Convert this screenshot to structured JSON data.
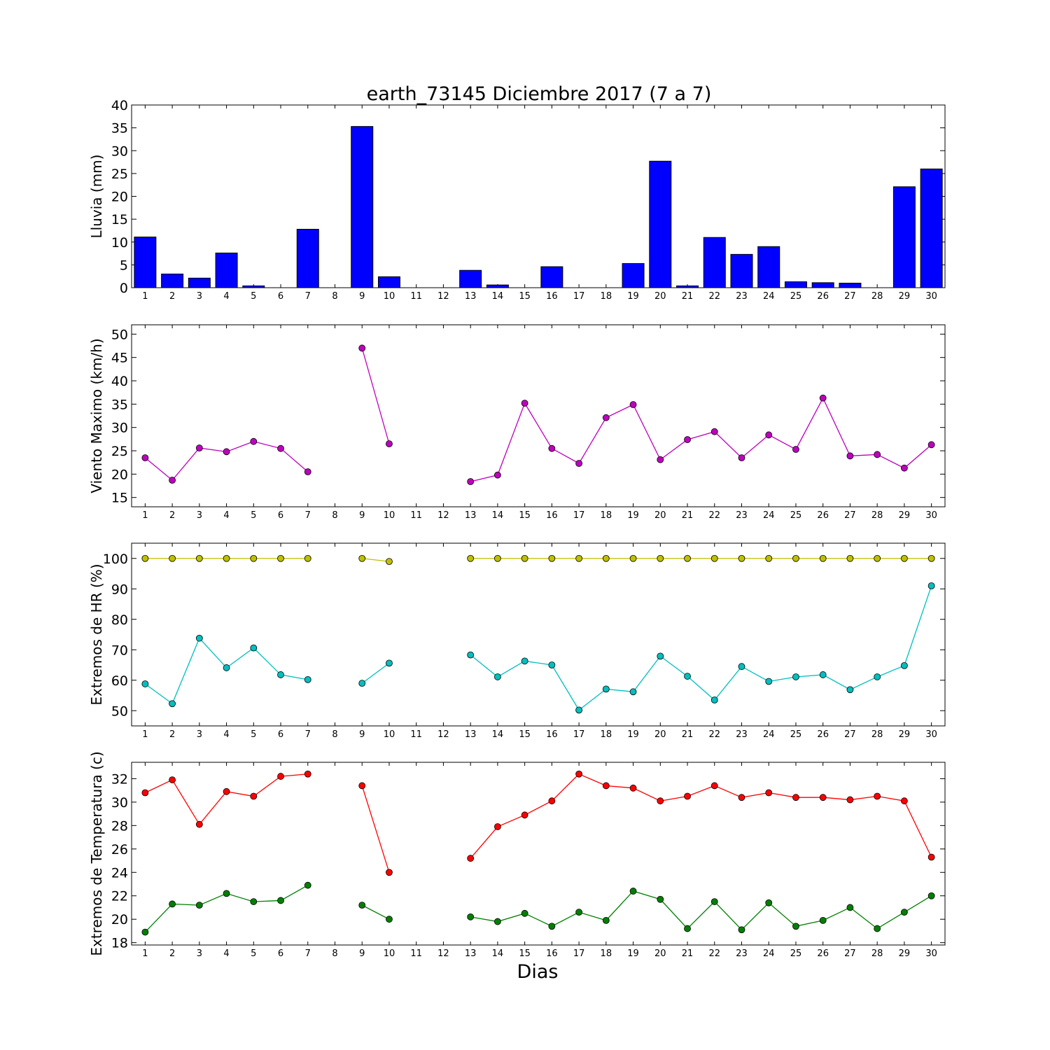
{
  "title": "earth_73145 Diciembre 2017  (7 a 7)",
  "xlabel": "Dias",
  "days": [
    1,
    2,
    3,
    4,
    5,
    6,
    7,
    8,
    9,
    10,
    11,
    12,
    13,
    14,
    15,
    16,
    17,
    18,
    19,
    20,
    21,
    22,
    23,
    24,
    25,
    26,
    27,
    28,
    29,
    30
  ],
  "colors": {
    "rain": "#0000ff",
    "wind": "#bf00bf",
    "hr_max": "#bfbf00",
    "hr_min": "#00bfbf",
    "temp_max": "#ff0000",
    "temp_min": "#008000"
  },
  "chart_data": [
    {
      "type": "bar",
      "ylabel": "Lluvia (mm)",
      "ylim": [
        0,
        40
      ],
      "yticks": [
        0,
        5,
        10,
        15,
        20,
        25,
        30,
        35,
        40
      ],
      "values": [
        11.1,
        3.0,
        2.1,
        7.6,
        0.4,
        0,
        12.8,
        0,
        35.3,
        2.4,
        0,
        0,
        3.8,
        0.6,
        0,
        4.6,
        0,
        0,
        5.3,
        27.7,
        0.4,
        11.0,
        7.3,
        9.0,
        1.3,
        1.1,
        1.0,
        0,
        22.1,
        26.0
      ]
    },
    {
      "type": "line",
      "ylabel": "Viento Maximo (km/h)",
      "ylim": [
        13,
        52
      ],
      "yticks": [
        15,
        20,
        25,
        30,
        35,
        40,
        45,
        50
      ],
      "series": [
        {
          "values": [
            23.5,
            18.7,
            25.6,
            24.8,
            27.0,
            25.5,
            20.5,
            null,
            47.0,
            26.5,
            null,
            null,
            18.4,
            19.8,
            35.2,
            25.5,
            22.3,
            32.1,
            34.9,
            23.1,
            27.4,
            29.1,
            23.5,
            28.4,
            25.3,
            36.3,
            23.9,
            24.2,
            21.3,
            26.3
          ]
        }
      ]
    },
    {
      "type": "line",
      "ylabel": "Extremos de HR (%)",
      "ylim": [
        45,
        105
      ],
      "yticks": [
        50,
        60,
        70,
        80,
        90,
        100
      ],
      "series": [
        {
          "values": [
            100,
            100,
            100,
            100,
            100,
            100,
            100,
            null,
            100,
            99,
            null,
            null,
            100,
            100,
            100,
            100,
            100,
            100,
            100,
            100,
            100,
            100,
            100,
            100,
            100,
            100,
            100,
            100,
            100,
            100
          ]
        },
        {
          "values": [
            58.8,
            52.3,
            73.8,
            64.1,
            70.6,
            61.8,
            60.2,
            null,
            59.0,
            65.6,
            null,
            null,
            68.3,
            61.1,
            66.3,
            65.0,
            50.2,
            57.1,
            56.2,
            67.9,
            61.3,
            53.5,
            64.5,
            59.6,
            61.1,
            61.8,
            56.9,
            61.1,
            64.8,
            91.0
          ]
        }
      ]
    },
    {
      "type": "line",
      "ylabel": "Extremos de Temperatura (c)",
      "ylim": [
        17.8,
        33.4
      ],
      "yticks": [
        18,
        20,
        22,
        24,
        26,
        28,
        30,
        32
      ],
      "series": [
        {
          "values": [
            30.8,
            31.9,
            28.1,
            30.9,
            30.5,
            32.2,
            32.4,
            null,
            31.4,
            24.0,
            null,
            null,
            25.2,
            27.9,
            28.9,
            30.1,
            32.4,
            31.4,
            31.2,
            30.1,
            30.5,
            31.4,
            30.4,
            30.8,
            30.4,
            30.4,
            30.2,
            30.5,
            30.1,
            25.3
          ]
        },
        {
          "values": [
            18.9,
            21.3,
            21.2,
            22.2,
            21.5,
            21.6,
            22.9,
            null,
            21.2,
            20.0,
            null,
            null,
            20.2,
            19.8,
            20.5,
            19.4,
            20.6,
            19.9,
            22.4,
            21.7,
            19.2,
            21.5,
            19.1,
            21.4,
            19.4,
            19.9,
            21.0,
            19.2,
            20.6,
            22.0
          ]
        }
      ]
    }
  ]
}
